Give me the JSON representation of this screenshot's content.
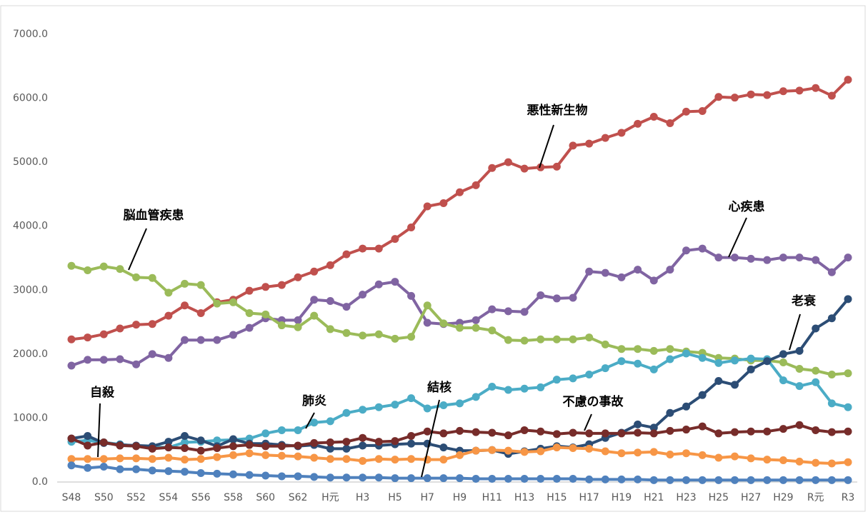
{
  "chart_data": {
    "type": "line",
    "categories": [
      "S48",
      null,
      "S50",
      null,
      "S52",
      null,
      "S54",
      null,
      "S56",
      null,
      "S58",
      null,
      "S60",
      null,
      "S62",
      null,
      "H元",
      null,
      "H3",
      null,
      "H5",
      null,
      "H7",
      null,
      "H9",
      null,
      "H11",
      null,
      "H13",
      null,
      "H15",
      null,
      "H17",
      null,
      "H19",
      null,
      "H21",
      null,
      "H23",
      null,
      "H25",
      null,
      "H27",
      null,
      "H29",
      null,
      "R元",
      null,
      "R3"
    ],
    "ylim": [
      0,
      7000
    ],
    "yticks": [
      {
        "value": 0,
        "label": "0.0"
      },
      {
        "value": 1000,
        "label": "1000.0"
      },
      {
        "value": 2000,
        "label": "2000.0"
      },
      {
        "value": 3000,
        "label": "3000.0"
      },
      {
        "value": 4000,
        "label": "4000.0"
      },
      {
        "value": 5000,
        "label": "5000.0"
      },
      {
        "value": 6000,
        "label": "6000.0"
      },
      {
        "value": 7000,
        "label": "7000.0"
      }
    ],
    "grid": false,
    "series": [
      {
        "name": "悪性新生物",
        "color": "#c0504d",
        "values": [
          2230,
          2260,
          2310,
          2400,
          2460,
          2470,
          2600,
          2760,
          2640,
          2810,
          2850,
          2990,
          3050,
          3080,
          3200,
          3290,
          3390,
          3560,
          3650,
          3650,
          3800,
          3980,
          4310,
          4360,
          4530,
          4640,
          4910,
          5000,
          4900,
          4920,
          4930,
          5260,
          5290,
          5380,
          5460,
          5600,
          5710,
          5610,
          5790,
          5800,
          6020,
          6010,
          6060,
          6050,
          6110,
          6120,
          6160,
          6040,
          6290
        ]
      },
      {
        "name": "心疾患",
        "color": "#8064a2",
        "values": [
          1820,
          1910,
          1910,
          1920,
          1840,
          2000,
          1940,
          2220,
          2220,
          2220,
          2300,
          2410,
          2560,
          2530,
          2530,
          2850,
          2830,
          2740,
          2930,
          3090,
          3130,
          2910,
          2490,
          2470,
          2490,
          2530,
          2700,
          2670,
          2660,
          2920,
          2870,
          2880,
          3290,
          3270,
          3200,
          3320,
          3150,
          3320,
          3620,
          3650,
          3510,
          3510,
          3490,
          3470,
          3510,
          3510,
          3470,
          3280,
          3510
        ]
      },
      {
        "name": "脳血管疾患",
        "color": "#9bbb59",
        "values": [
          3380,
          3310,
          3370,
          3330,
          3200,
          3190,
          2960,
          3100,
          3080,
          2790,
          2810,
          2640,
          2620,
          2450,
          2420,
          2600,
          2390,
          2330,
          2290,
          2310,
          2240,
          2270,
          2760,
          2480,
          2410,
          2410,
          2370,
          2220,
          2210,
          2230,
          2230,
          2230,
          2260,
          2150,
          2080,
          2080,
          2050,
          2080,
          2040,
          2020,
          1940,
          1930,
          1900,
          1900,
          1870,
          1770,
          1740,
          1680,
          1700
        ]
      },
      {
        "name": "肺炎",
        "color": "#4bacc6",
        "values": [
          630,
          650,
          620,
          590,
          560,
          550,
          540,
          620,
          630,
          650,
          660,
          680,
          760,
          810,
          810,
          930,
          950,
          1080,
          1130,
          1170,
          1210,
          1310,
          1150,
          1200,
          1230,
          1330,
          1490,
          1440,
          1460,
          1480,
          1600,
          1620,
          1680,
          1780,
          1890,
          1850,
          1760,
          1920,
          2010,
          1940,
          1860,
          1900,
          1930,
          1920,
          1590,
          1500,
          1560,
          1230,
          1170
        ]
      },
      {
        "name": "老衰",
        "color": "#2c4d75",
        "values": [
          680,
          720,
          610,
          580,
          570,
          560,
          630,
          720,
          650,
          560,
          670,
          600,
          600,
          580,
          560,
          580,
          520,
          520,
          570,
          570,
          590,
          600,
          600,
          540,
          490,
          490,
          500,
          440,
          480,
          520,
          560,
          540,
          590,
          690,
          770,
          900,
          850,
          1080,
          1180,
          1360,
          1580,
          1520,
          1760,
          1890,
          2000,
          2050,
          2400,
          2560,
          2860
        ]
      },
      {
        "name": "不慮の事故",
        "color": "#772c2a",
        "values": [
          680,
          570,
          620,
          570,
          560,
          520,
          540,
          530,
          490,
          530,
          560,
          580,
          560,
          560,
          570,
          610,
          620,
          630,
          690,
          630,
          640,
          720,
          790,
          760,
          800,
          780,
          770,
          730,
          810,
          790,
          750,
          770,
          760,
          760,
          760,
          770,
          760,
          800,
          820,
          870,
          760,
          780,
          790,
          790,
          830,
          890,
          810,
          780,
          790
        ]
      },
      {
        "name": "自殺",
        "color": "#f79646",
        "values": [
          360,
          360,
          360,
          370,
          370,
          360,
          380,
          350,
          360,
          390,
          420,
          450,
          420,
          410,
          400,
          380,
          360,
          360,
          330,
          360,
          350,
          360,
          350,
          350,
          420,
          490,
          500,
          490,
          470,
          480,
          540,
          530,
          520,
          480,
          450,
          460,
          470,
          430,
          450,
          420,
          380,
          400,
          370,
          350,
          340,
          320,
          300,
          290,
          310
        ]
      },
      {
        "name": "結核",
        "color": "#4f81bd",
        "values": [
          260,
          220,
          240,
          200,
          200,
          180,
          170,
          160,
          140,
          130,
          120,
          110,
          100,
          90,
          90,
          80,
          70,
          70,
          70,
          70,
          60,
          60,
          60,
          60,
          60,
          50,
          50,
          50,
          50,
          50,
          50,
          50,
          40,
          40,
          40,
          40,
          30,
          30,
          30,
          30,
          30,
          30,
          30,
          30,
          30,
          30,
          30,
          30,
          30
        ]
      }
    ]
  }
}
